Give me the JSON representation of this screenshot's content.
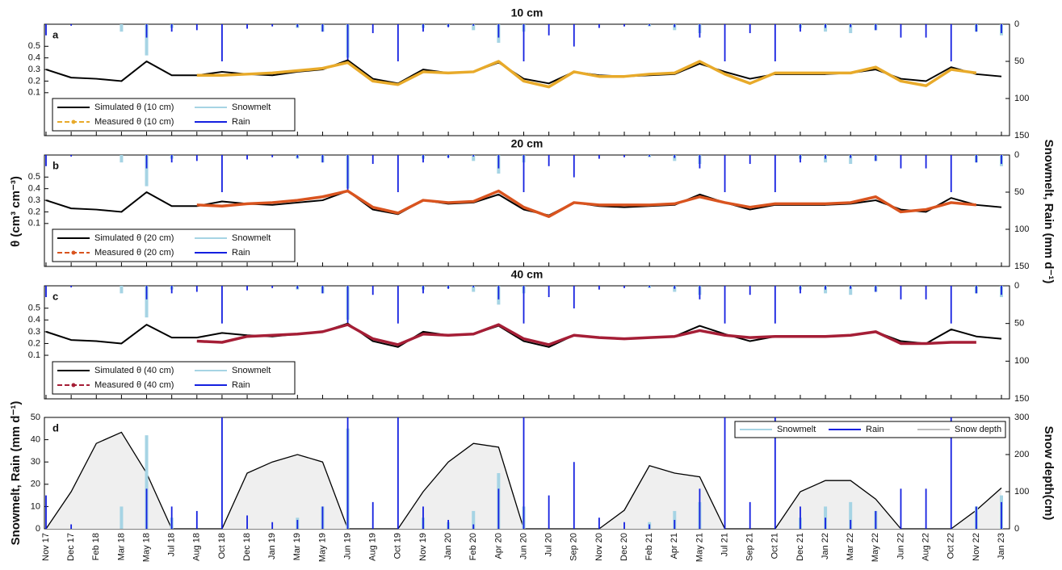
{
  "y_label": "θ (cm³ cm⁻³)",
  "y2_label": "Snowmelt, Rain (mm d⁻¹)",
  "chart_data": [
    {
      "type": "combo",
      "title": "10 cm",
      "panel_label": "a",
      "ylim": [
        -0.27,
        0.69
      ],
      "yticks": [
        0.1,
        0.2,
        0.3,
        0.4,
        0.5
      ],
      "y2lim": [
        150,
        0
      ],
      "y2ticks": [
        0,
        50,
        100,
        150
      ],
      "legend": "lower left",
      "series": [
        {
          "name": "Simulated θ (10 cm)",
          "color": "#000000",
          "mark": "line",
          "values": [
            0.3,
            0.23,
            0.22,
            0.2,
            0.37,
            0.25,
            0.25,
            0.28,
            0.26,
            0.25,
            0.28,
            0.3,
            0.38,
            0.22,
            0.18,
            0.3,
            0.27,
            0.28,
            0.36,
            0.22,
            0.18,
            0.28,
            0.25,
            0.24,
            0.25,
            0.26,
            0.35,
            0.28,
            0.22,
            0.26,
            0.26,
            0.26,
            0.27,
            0.3,
            0.22,
            0.2,
            0.32,
            0.26,
            0.24
          ]
        },
        {
          "name": "Measured θ  (10 cm)",
          "color": "#e8aa2a",
          "mark": "line",
          "values": [
            null,
            null,
            null,
            null,
            null,
            null,
            0.25,
            0.25,
            0.26,
            0.27,
            0.29,
            0.31,
            0.36,
            0.2,
            0.17,
            0.28,
            0.27,
            0.28,
            0.37,
            0.2,
            0.15,
            0.28,
            0.24,
            0.24,
            0.26,
            0.27,
            0.37,
            0.26,
            0.18,
            0.27,
            0.27,
            0.27,
            0.27,
            0.32,
            0.2,
            0.16,
            0.3,
            0.27,
            null
          ]
        },
        {
          "name": "Snowmelt",
          "color": "#a6d4e4",
          "mark": "spike",
          "axis": "y2",
          "values": [
            0,
            0,
            0,
            10,
            42,
            5,
            0,
            0,
            0,
            0,
            5,
            10,
            45,
            0,
            0,
            5,
            3,
            8,
            25,
            10,
            0,
            0,
            0,
            0,
            3,
            8,
            12,
            0,
            0,
            0,
            5,
            10,
            12,
            8,
            0,
            0,
            0,
            10,
            15
          ]
        },
        {
          "name": "Rain",
          "color": "#1420e0",
          "mark": "spike",
          "axis": "y2",
          "values": [
            15,
            2,
            0,
            0,
            18,
            10,
            8,
            50,
            6,
            3,
            4,
            10,
            50,
            12,
            50,
            10,
            4,
            2,
            18,
            50,
            15,
            30,
            5,
            3,
            2,
            4,
            18,
            50,
            12,
            50,
            10,
            5,
            4,
            8,
            18,
            18,
            50,
            10,
            12
          ]
        }
      ]
    },
    {
      "type": "combo",
      "title": "20 cm",
      "panel_label": "b",
      "ylim": [
        -0.27,
        0.69
      ],
      "yticks": [
        0.1,
        0.2,
        0.3,
        0.4,
        0.5
      ],
      "y2lim": [
        150,
        0
      ],
      "y2ticks": [
        0,
        50,
        100,
        150
      ],
      "legend": "lower left",
      "series": [
        {
          "name": "Simulated θ (20 cm)",
          "color": "#000000",
          "mark": "line",
          "values": [
            0.3,
            0.23,
            0.22,
            0.2,
            0.37,
            0.25,
            0.25,
            0.29,
            0.27,
            0.26,
            0.28,
            0.3,
            0.38,
            0.22,
            0.18,
            0.3,
            0.27,
            0.28,
            0.35,
            0.22,
            0.17,
            0.28,
            0.25,
            0.24,
            0.25,
            0.26,
            0.35,
            0.28,
            0.22,
            0.26,
            0.26,
            0.26,
            0.27,
            0.3,
            0.22,
            0.2,
            0.32,
            0.26,
            0.24
          ]
        },
        {
          "name": "Measured θ  (20 cm)",
          "color": "#d9541f",
          "mark": "line",
          "values": [
            null,
            null,
            null,
            null,
            null,
            null,
            0.26,
            0.25,
            0.27,
            0.28,
            0.3,
            0.33,
            0.38,
            0.24,
            0.19,
            0.3,
            0.28,
            0.29,
            0.38,
            0.24,
            0.16,
            0.28,
            0.26,
            0.26,
            0.26,
            0.27,
            0.33,
            0.28,
            0.24,
            0.27,
            0.27,
            0.27,
            0.28,
            0.33,
            0.2,
            0.22,
            0.28,
            0.26,
            null
          ]
        },
        {
          "name": "Snowmelt",
          "color": "#a6d4e4",
          "mark": "spike",
          "axis": "y2",
          "values": [
            0,
            0,
            0,
            10,
            42,
            5,
            0,
            0,
            0,
            0,
            5,
            10,
            45,
            0,
            0,
            5,
            3,
            8,
            25,
            10,
            0,
            0,
            0,
            0,
            3,
            8,
            12,
            0,
            0,
            0,
            5,
            10,
            12,
            8,
            0,
            0,
            0,
            10,
            15
          ]
        },
        {
          "name": "Rain",
          "color": "#1420e0",
          "mark": "spike",
          "axis": "y2",
          "values": [
            15,
            2,
            0,
            0,
            18,
            10,
            8,
            50,
            6,
            3,
            4,
            10,
            50,
            12,
            50,
            10,
            4,
            2,
            18,
            50,
            15,
            30,
            5,
            3,
            2,
            4,
            18,
            50,
            12,
            50,
            10,
            5,
            4,
            8,
            18,
            18,
            50,
            10,
            12
          ]
        }
      ]
    },
    {
      "type": "combo",
      "title": "40 cm",
      "panel_label": "c",
      "ylim": [
        -0.27,
        0.69
      ],
      "yticks": [
        0.1,
        0.2,
        0.3,
        0.4,
        0.5
      ],
      "y2lim": [
        150,
        0
      ],
      "y2ticks": [
        0,
        50,
        100,
        150
      ],
      "legend": "lower left",
      "series": [
        {
          "name": "Simulated θ (40 cm)",
          "color": "#000000",
          "mark": "line",
          "values": [
            0.3,
            0.23,
            0.22,
            0.2,
            0.36,
            0.25,
            0.25,
            0.29,
            0.27,
            0.26,
            0.28,
            0.3,
            0.37,
            0.22,
            0.17,
            0.3,
            0.27,
            0.28,
            0.35,
            0.22,
            0.17,
            0.27,
            0.25,
            0.24,
            0.25,
            0.26,
            0.35,
            0.28,
            0.22,
            0.26,
            0.26,
            0.26,
            0.27,
            0.3,
            0.22,
            0.2,
            0.32,
            0.26,
            0.24
          ]
        },
        {
          "name": "Measured θ  (40 cm)",
          "color": "#a51e36",
          "mark": "line",
          "values": [
            null,
            null,
            null,
            null,
            null,
            null,
            0.22,
            0.21,
            0.26,
            0.27,
            0.28,
            0.3,
            0.36,
            0.24,
            0.19,
            0.28,
            0.27,
            0.28,
            0.36,
            0.24,
            0.19,
            0.27,
            0.25,
            0.24,
            0.25,
            0.26,
            0.31,
            0.27,
            0.25,
            0.26,
            0.26,
            0.26,
            0.27,
            0.3,
            0.2,
            0.2,
            0.21,
            0.21,
            null
          ]
        },
        {
          "name": "Snowmelt",
          "color": "#a6d4e4",
          "mark": "spike",
          "axis": "y2",
          "values": [
            0,
            0,
            0,
            10,
            42,
            5,
            0,
            0,
            0,
            0,
            5,
            10,
            45,
            0,
            0,
            5,
            3,
            8,
            25,
            10,
            0,
            0,
            0,
            0,
            3,
            8,
            12,
            0,
            0,
            0,
            5,
            10,
            12,
            8,
            0,
            0,
            0,
            10,
            15
          ]
        },
        {
          "name": "Rain",
          "color": "#1420e0",
          "mark": "spike",
          "axis": "y2",
          "values": [
            15,
            2,
            0,
            0,
            18,
            10,
            8,
            50,
            6,
            3,
            4,
            10,
            50,
            12,
            50,
            10,
            4,
            2,
            18,
            50,
            15,
            30,
            5,
            3,
            2,
            4,
            18,
            50,
            12,
            50,
            10,
            5,
            4,
            8,
            18,
            18,
            50,
            10,
            12
          ]
        }
      ]
    },
    {
      "type": "combo",
      "panel_label": "d",
      "y_label": "Snowmelt, Rain (mm d⁻¹)",
      "y2_label": "Snow depth(cm)",
      "ylim": [
        0,
        50
      ],
      "yticks": [
        0,
        10,
        20,
        30,
        40,
        50
      ],
      "y2lim": [
        0,
        300
      ],
      "y2ticks": [
        0,
        100,
        200,
        300
      ],
      "legend": "upper right",
      "categories": [
        "Nov 17",
        "Dec 17",
        "Feb 18",
        "Mar 18",
        "May 18",
        "Jul 18",
        "Aug 18",
        "Oct 18",
        "Dec 18",
        "Jan 19",
        "Mar 19",
        "May 19",
        "Jun 19",
        "Aug 19",
        "Oct 19",
        "Nov 19",
        "Jan 20",
        "Feb 20",
        "Apr 20",
        "Jun 20",
        "Jul 20",
        "Sep 20",
        "Nov 20",
        "Dec 20",
        "Feb 21",
        "Apr 21",
        "May 21",
        "Jul 21",
        "Sep 21",
        "Oct 21",
        "Dec 21",
        "Jan 22",
        "Mar 22",
        "May 22",
        "Jun 22",
        "Aug 22",
        "Oct 22",
        "Nov 22",
        "Jan 23"
      ],
      "series": [
        {
          "name": "Snowmelt",
          "color": "#a6d4e4",
          "mark": "spike",
          "values": [
            0,
            0,
            0,
            10,
            42,
            5,
            0,
            0,
            0,
            0,
            5,
            10,
            45,
            0,
            0,
            5,
            3,
            8,
            25,
            10,
            0,
            0,
            0,
            0,
            3,
            8,
            12,
            0,
            0,
            0,
            5,
            10,
            12,
            8,
            0,
            0,
            0,
            10,
            15
          ]
        },
        {
          "name": "Rain",
          "color": "#1420e0",
          "mark": "spike",
          "values": [
            15,
            2,
            0,
            0,
            18,
            10,
            8,
            50,
            6,
            3,
            4,
            10,
            50,
            12,
            50,
            10,
            4,
            2,
            18,
            50,
            15,
            30,
            5,
            3,
            2,
            4,
            18,
            50,
            12,
            50,
            10,
            5,
            4,
            8,
            18,
            18,
            50,
            10,
            12
          ]
        },
        {
          "name": "Snow depth",
          "color": "#000000",
          "fill": "#efefef",
          "mark": "area",
          "axis": "y2",
          "values": [
            0,
            100,
            230,
            260,
            150,
            0,
            0,
            0,
            150,
            180,
            200,
            180,
            0,
            0,
            0,
            100,
            180,
            230,
            220,
            0,
            0,
            0,
            0,
            50,
            170,
            150,
            140,
            0,
            0,
            0,
            100,
            130,
            130,
            80,
            0,
            0,
            0,
            50,
            110
          ]
        }
      ]
    }
  ]
}
